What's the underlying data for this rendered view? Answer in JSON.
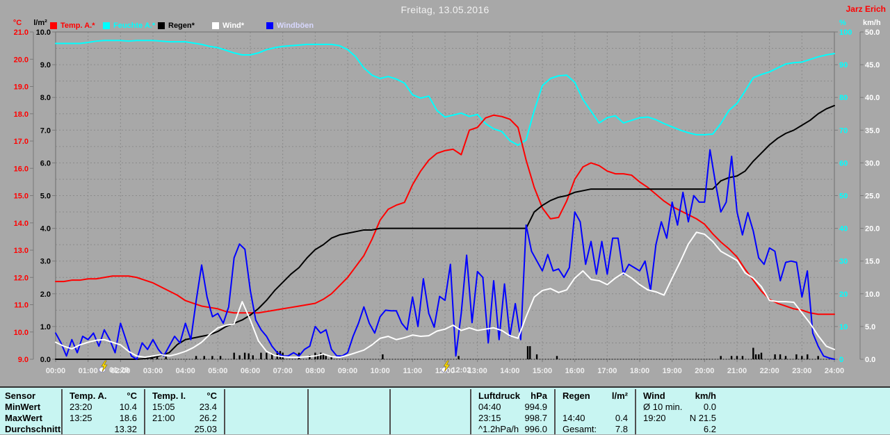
{
  "header": {
    "date_title": "Freitag, 13.05.2016",
    "station": "Jarz Erich"
  },
  "legend": [
    {
      "label": "Temp. A.*",
      "swatch": "#ff0000",
      "text_color": "#ff0000"
    },
    {
      "label": "Feuchte A.*",
      "swatch": "#00ffff",
      "text_color": "#00ffff"
    },
    {
      "label": "Regen*",
      "swatch": "#000000",
      "text_color": "#000000"
    },
    {
      "label": "Wind*",
      "swatch": "#ffffff",
      "text_color": "#ffffff"
    },
    {
      "label": "Windböen",
      "swatch": "#0000ff",
      "text_color": "#d8d8ff"
    }
  ],
  "axes": {
    "temp": {
      "title": "°C",
      "color": "#ff0000",
      "min": 9,
      "max": 21,
      "ticks": [
        "21.0",
        "20.0",
        "19.0",
        "18.0",
        "17.0",
        "16.0",
        "15.0",
        "14.0",
        "13.0",
        "12.0",
        "11.0",
        "10.0",
        "9.0"
      ]
    },
    "rain": {
      "title": "l/m²",
      "color": "#000000",
      "min": 0,
      "max": 10,
      "ticks": [
        "10.0",
        "9.0",
        "8.0",
        "7.0",
        "6.0",
        "5.0",
        "4.0",
        "3.0",
        "2.0",
        "1.0",
        "0.0"
      ]
    },
    "humidity": {
      "title": "%",
      "color": "#00ffff",
      "min": 0,
      "max": 100,
      "ticks": [
        "100",
        "90",
        "80",
        "70",
        "60",
        "50",
        "40",
        "30",
        "20",
        "10",
        "0"
      ]
    },
    "wind": {
      "title": "km/h",
      "color": "#ffffff",
      "min": 0,
      "max": 50,
      "ticks": [
        "50.0",
        "45.0",
        "40.0",
        "35.0",
        "30.0",
        "25.0",
        "20.0",
        "15.0",
        "10.0",
        "5.0",
        "0.0"
      ]
    },
    "x": {
      "labels": [
        "00:00",
        "01:00",
        "02:00",
        "03:00",
        "04:00",
        "05:00",
        "06:00",
        "07:00",
        "08:00",
        "09:00",
        "10:00",
        "11:00",
        "12:00",
        "13:00",
        "14:00",
        "15:00",
        "16:00",
        "17:00",
        "18:00",
        "19:00",
        "20:00",
        "21:00",
        "22:00",
        "23:00",
        "24:00"
      ]
    }
  },
  "markers": [
    {
      "label": "01:29",
      "hour": 1.48
    },
    {
      "label": "12:02",
      "hour": 12.03
    }
  ],
  "chart_data": {
    "type": "line",
    "title": "Freitag, 13.05.2016",
    "x_range_hours": [
      0,
      24
    ],
    "grid": true,
    "series": [
      {
        "name": "Feuchte A.",
        "axis": "humidity",
        "color": "#00ffff",
        "width": 2,
        "step_min": 15,
        "values": [
          96.5,
          96.5,
          96.5,
          96.5,
          96.8,
          97.2,
          97.4,
          97.4,
          97.4,
          97.2,
          97.4,
          97.4,
          97.4,
          97.2,
          97,
          97,
          97,
          96.6,
          96.2,
          95.6,
          95.2,
          94.4,
          93.6,
          93,
          93,
          93.6,
          94.6,
          95.2,
          95.6,
          95.8,
          96,
          96.2,
          96.2,
          96.2,
          96.2,
          95.8,
          94.6,
          92.4,
          89,
          86.8,
          85.8,
          86.4,
          85.6,
          84.4,
          80.8,
          79.8,
          80.4,
          76,
          74,
          74.6,
          75.2,
          74.2,
          74.8,
          72,
          70.4,
          69.6,
          66.8,
          65.4,
          67,
          76,
          83.6,
          85.8,
          86.6,
          86.8,
          84.6,
          79.4,
          75.8,
          72.2,
          73.8,
          74.4,
          72.2,
          73,
          73.8,
          74,
          73.2,
          72,
          71,
          70,
          69.2,
          68.6,
          68.6,
          68.8,
          72,
          76,
          78.2,
          82,
          86,
          87,
          87.8,
          89,
          90.2,
          90.6,
          90.8,
          91.6,
          92.4,
          93,
          93.4
        ]
      },
      {
        "name": "Temp. A.",
        "axis": "temp",
        "color": "#ff0000",
        "width": 2,
        "step_min": 15,
        "values": [
          11.85,
          11.85,
          11.9,
          11.9,
          11.95,
          11.95,
          12,
          12.05,
          12.05,
          12.05,
          12,
          11.9,
          11.8,
          11.65,
          11.5,
          11.35,
          11.15,
          11.05,
          10.95,
          10.9,
          10.85,
          10.75,
          10.7,
          10.7,
          10.7,
          10.7,
          10.75,
          10.8,
          10.85,
          10.9,
          10.95,
          11,
          11.05,
          11.2,
          11.4,
          11.7,
          12,
          12.4,
          12.8,
          13.4,
          14.1,
          14.5,
          14.65,
          14.75,
          15.4,
          15.9,
          16.3,
          16.55,
          16.65,
          16.7,
          16.5,
          17.4,
          17.5,
          17.85,
          17.95,
          17.9,
          17.8,
          17.5,
          16.3,
          15.3,
          14.55,
          14.15,
          14.2,
          14.8,
          15.6,
          16.05,
          16.2,
          16.1,
          15.9,
          15.8,
          15.8,
          15.75,
          15.5,
          15.3,
          15.05,
          14.8,
          14.6,
          14.45,
          14.3,
          14.15,
          13.95,
          13.6,
          13.3,
          13.05,
          12.75,
          12.3,
          11.9,
          11.5,
          11.2,
          11.05,
          10.95,
          10.85,
          10.8,
          10.7,
          10.65,
          10.65,
          10.65
        ]
      },
      {
        "name": "Regen (Summe)",
        "axis": "rain",
        "color": "#000000",
        "width": 2,
        "step_min": 15,
        "values": [
          0,
          0,
          0,
          0,
          0,
          0,
          0,
          0,
          0,
          0,
          0,
          0.02,
          0.05,
          0.12,
          0.2,
          0.45,
          0.6,
          0.65,
          0.7,
          0.75,
          0.85,
          1,
          1.1,
          1.2,
          1.35,
          1.55,
          1.8,
          2.1,
          2.35,
          2.6,
          2.8,
          3.1,
          3.35,
          3.5,
          3.7,
          3.8,
          3.85,
          3.9,
          3.95,
          3.95,
          4,
          4,
          4,
          4,
          4,
          4,
          4,
          4,
          4,
          4,
          4,
          4,
          4,
          4,
          4,
          4,
          4,
          4,
          4,
          4.5,
          4.7,
          4.85,
          4.95,
          5,
          5.1,
          5.15,
          5.2,
          5.2,
          5.2,
          5.2,
          5.2,
          5.2,
          5.2,
          5.2,
          5.2,
          5.2,
          5.2,
          5.2,
          5.2,
          5.2,
          5.2,
          5.2,
          5.45,
          5.55,
          5.6,
          5.75,
          6.05,
          6.3,
          6.55,
          6.75,
          6.9,
          7,
          7.15,
          7.3,
          7.5,
          7.65,
          7.75
        ]
      },
      {
        "name": "Windböen",
        "axis": "wind",
        "color": "#0000ff",
        "width": 2,
        "step_min": 10,
        "values": [
          4,
          2.5,
          0.5,
          3,
          1,
          3.5,
          3,
          4,
          2,
          4.5,
          3,
          1,
          5.5,
          3,
          0.5,
          0,
          2.5,
          1.5,
          3,
          1.5,
          0.5,
          2,
          3.5,
          2.5,
          5.5,
          3,
          9,
          14.4,
          9.5,
          6.5,
          7,
          5.5,
          8,
          15.5,
          17.6,
          16.8,
          10.5,
          6,
          4.5,
          3.5,
          2,
          1,
          0.5,
          0.5,
          1,
          0.5,
          1.5,
          2,
          5,
          4,
          4.5,
          1.5,
          0.5,
          0.5,
          1,
          3.5,
          5.5,
          8,
          5.5,
          4,
          6.5,
          7.5,
          7.4,
          7.4,
          5.5,
          4.5,
          9.5,
          5,
          12.3,
          7,
          4.9,
          9.6,
          9,
          14.5,
          0.5,
          7,
          15.9,
          5.6,
          13.4,
          12.5,
          2.5,
          12,
          3,
          11.5,
          3.5,
          8.5,
          3,
          20.5,
          16.5,
          15,
          13.5,
          16,
          13.5,
          13.8,
          12.5,
          14,
          22.5,
          21,
          14.5,
          18,
          13,
          18,
          13,
          18.5,
          18.5,
          13,
          14.5,
          14,
          13.5,
          15,
          10.5,
          17.5,
          21,
          18.5,
          24,
          20.5,
          25.5,
          21,
          25,
          24,
          24,
          32,
          27,
          22.5,
          24,
          31,
          22.5,
          19,
          22.4,
          19.6,
          15.5,
          14.5,
          17,
          16.5,
          12,
          14.8,
          15,
          14.8,
          9.5,
          13.5,
          4,
          2,
          0.5,
          0.2,
          0
        ]
      },
      {
        "name": "Wind",
        "axis": "wind",
        "color": "#ffffff",
        "width": 2,
        "step_min": 15,
        "values": [
          2.6,
          2,
          1.6,
          2.2,
          2.6,
          2.9,
          3,
          2.6,
          2.2,
          1.2,
          0.5,
          0.3,
          0.5,
          0.7,
          0.5,
          0.8,
          1.2,
          1.8,
          2.6,
          3.8,
          4.8,
          5.2,
          5.4,
          8.8,
          6,
          2.8,
          1.2,
          0.6,
          0.4,
          0.3,
          0.3,
          0.4,
          0.5,
          0.8,
          0.4,
          0.3,
          0.6,
          1,
          1.4,
          2.2,
          3.2,
          3.5,
          3,
          3.3,
          3.7,
          3.5,
          3.6,
          4.3,
          4.6,
          5.2,
          4.4,
          4.8,
          4.4,
          4.6,
          4.8,
          4.4,
          3.6,
          3.2,
          6.5,
          9.5,
          10.5,
          10.8,
          10.2,
          10.6,
          12.4,
          13.5,
          12.2,
          12,
          11.4,
          12.4,
          13.2,
          12.4,
          11.4,
          10.6,
          10.3,
          9.8,
          12.4,
          14.9,
          17.6,
          19.4,
          19.1,
          18,
          16.5,
          15.8,
          15.1,
          13.2,
          12.4,
          11.1,
          9,
          8.8,
          8.8,
          8.7,
          7.1,
          5.5,
          3.6,
          2,
          1.5
        ]
      }
    ],
    "rain_bars": {
      "axis": "rain",
      "color": "#000000",
      "events": [
        [
          2.83,
          0.08
        ],
        [
          2.97,
          0.08
        ],
        [
          3.13,
          0.08
        ],
        [
          3.4,
          0.08
        ],
        [
          4.33,
          0.1
        ],
        [
          4.58,
          0.1
        ],
        [
          4.83,
          0.1
        ],
        [
          5.08,
          0.1
        ],
        [
          5.5,
          0.2
        ],
        [
          5.67,
          0.12
        ],
        [
          5.83,
          0.2
        ],
        [
          5.95,
          0.18
        ],
        [
          6.08,
          0.12
        ],
        [
          6.33,
          0.2
        ],
        [
          6.5,
          0.2
        ],
        [
          6.67,
          0.18
        ],
        [
          6.83,
          0.25
        ],
        [
          6.92,
          0.25
        ],
        [
          7,
          0.2
        ],
        [
          7.5,
          0.2
        ],
        [
          7.83,
          0.12
        ],
        [
          8,
          0.2
        ],
        [
          8.08,
          0.15
        ],
        [
          8.17,
          0.2
        ],
        [
          8.25,
          0.15
        ],
        [
          8.33,
          0.1
        ],
        [
          8.5,
          0.1
        ],
        [
          10.08,
          0.15
        ],
        [
          12.42,
          0.1
        ],
        [
          14.55,
          0.4
        ],
        [
          14.62,
          0.4
        ],
        [
          14.83,
          0.15
        ],
        [
          15.45,
          0.1
        ],
        [
          20.5,
          0.1
        ],
        [
          20.83,
          0.1
        ],
        [
          21,
          0.1
        ],
        [
          21.17,
          0.1
        ],
        [
          21.5,
          0.35
        ],
        [
          21.58,
          0.15
        ],
        [
          21.67,
          0.15
        ],
        [
          21.75,
          0.2
        ],
        [
          22.17,
          0.15
        ],
        [
          22.33,
          0.15
        ],
        [
          22.5,
          0.1
        ],
        [
          22.83,
          0.15
        ],
        [
          23,
          0.1
        ],
        [
          23.17,
          0.15
        ],
        [
          23.5,
          0.1
        ]
      ]
    }
  },
  "table": {
    "row_labels": [
      "Sensor",
      "MinWert",
      "MaxWert",
      "Durchschnitt"
    ],
    "columns": [
      {
        "slot": 0,
        "header": [
          "Temp. A.",
          "°C"
        ],
        "rows": [
          [
            "23:20",
            "10.4"
          ],
          [
            "13:25",
            "18.6"
          ],
          [
            "",
            "13.32"
          ]
        ]
      },
      {
        "slot": 1,
        "header": [
          "Temp. I.",
          "°C"
        ],
        "rows": [
          [
            "15:05",
            "23.4"
          ],
          [
            "21:00",
            "26.2"
          ],
          [
            "",
            "25.03"
          ]
        ]
      },
      {
        "slot": 5,
        "header": [
          "Luftdruck",
          "hPa"
        ],
        "rows": [
          [
            "04:40",
            "994.9"
          ],
          [
            "23:15",
            "998.7"
          ],
          [
            "^1.2hPa/h",
            "996.0"
          ]
        ]
      },
      {
        "slot": 6,
        "header": [
          "Regen",
          "l/m²"
        ],
        "rows": [
          [
            "",
            ""
          ],
          [
            "14:40",
            "0.4"
          ],
          [
            "Gesamt:",
            "7.8"
          ]
        ]
      },
      {
        "slot": 7,
        "header": [
          "Wind",
          "km/h"
        ],
        "rows": [
          [
            "Ø 10 min.",
            "0.0"
          ],
          [
            "19:20",
            "N 21.5"
          ],
          [
            "",
            "6.2"
          ]
        ]
      }
    ]
  },
  "colors": {
    "background": "#a8a8a8",
    "grid": "#8a8a8a",
    "frame": "#787878",
    "x_label": "#f0f0f0",
    "table_bg": "#c8f5f2",
    "marker_bolt": "#ffe000"
  }
}
